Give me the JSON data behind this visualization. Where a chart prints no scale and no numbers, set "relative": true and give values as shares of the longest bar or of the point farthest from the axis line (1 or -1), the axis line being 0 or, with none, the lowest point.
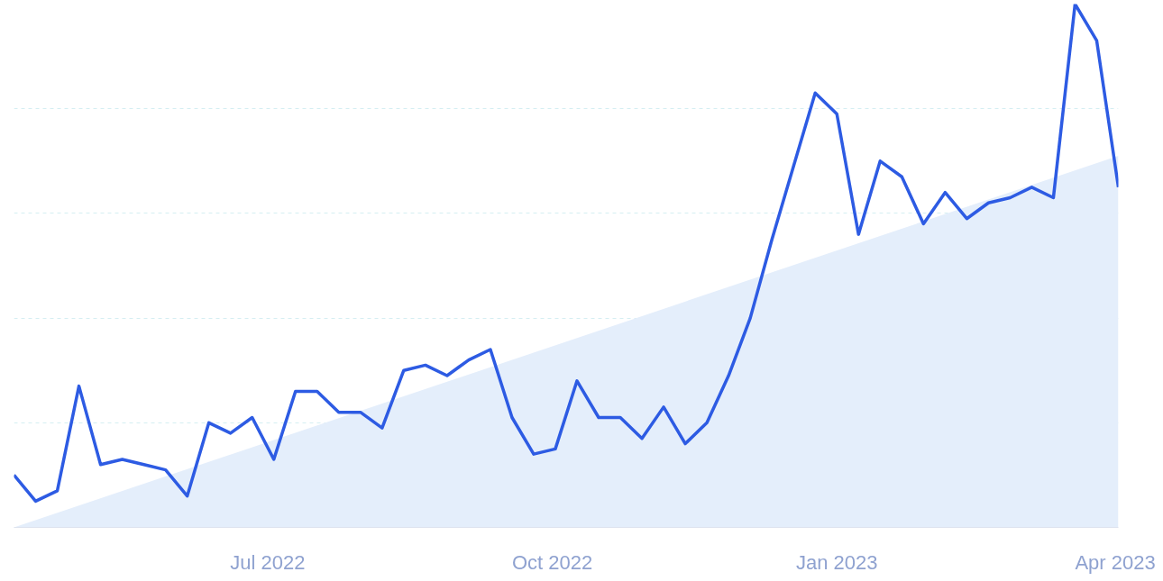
{
  "chart_data": {
    "type": "line",
    "relative": true,
    "x": [
      "2022-04-10",
      "2022-04-17",
      "2022-04-24",
      "2022-05-01",
      "2022-05-08",
      "2022-05-15",
      "2022-05-22",
      "2022-05-29",
      "2022-06-05",
      "2022-06-12",
      "2022-06-19",
      "2022-06-26",
      "2022-07-03",
      "2022-07-10",
      "2022-07-17",
      "2022-07-24",
      "2022-07-31",
      "2022-08-07",
      "2022-08-14",
      "2022-08-21",
      "2022-08-28",
      "2022-09-04",
      "2022-09-11",
      "2022-09-18",
      "2022-09-25",
      "2022-10-02",
      "2022-10-09",
      "2022-10-16",
      "2022-10-23",
      "2022-10-30",
      "2022-11-06",
      "2022-11-13",
      "2022-11-20",
      "2022-11-27",
      "2022-12-04",
      "2022-12-11",
      "2022-12-18",
      "2022-12-25",
      "2023-01-01",
      "2023-01-08",
      "2023-01-15",
      "2023-01-22",
      "2023-01-29",
      "2023-02-05",
      "2023-02-12",
      "2023-02-19",
      "2023-02-26",
      "2023-03-05",
      "2023-03-12",
      "2023-03-19",
      "2023-03-26",
      "2023-04-02"
    ],
    "series": [
      {
        "color": "#2d5be3",
        "values": [
          0.1,
          0.05,
          0.07,
          0.27,
          0.12,
          0.13,
          0.12,
          0.11,
          0.06,
          0.2,
          0.18,
          0.21,
          0.13,
          0.26,
          0.26,
          0.22,
          0.22,
          0.19,
          0.3,
          0.31,
          0.29,
          0.32,
          0.34,
          0.21,
          0.14,
          0.15,
          0.28,
          0.21,
          0.21,
          0.17,
          0.23,
          0.16,
          0.2,
          0.29,
          0.4,
          0.55,
          0.69,
          0.83,
          0.79,
          0.56,
          0.7,
          0.67,
          0.58,
          0.64,
          0.59,
          0.62,
          0.63,
          0.65,
          0.63,
          1.0,
          0.93,
          0.65
        ]
      },
      {
        "type": "area",
        "color": "#e4eefb",
        "x": [
          "2022-04-10",
          "2023-04-02"
        ],
        "values": [
          0,
          0.71
        ]
      }
    ],
    "xlim": [
      "2022-04-10",
      "2023-04-02"
    ],
    "xticks": [
      {
        "value": "2022-07-01",
        "label": "Jul 2022"
      },
      {
        "value": "2022-10-01",
        "label": "Oct 2022"
      },
      {
        "value": "2023-01-01",
        "label": "Jan 2023"
      },
      {
        "value": "2023-04-01",
        "label": "Apr 2023"
      }
    ],
    "grid": "y",
    "tick_labels": "x",
    "line_style": "solid"
  }
}
